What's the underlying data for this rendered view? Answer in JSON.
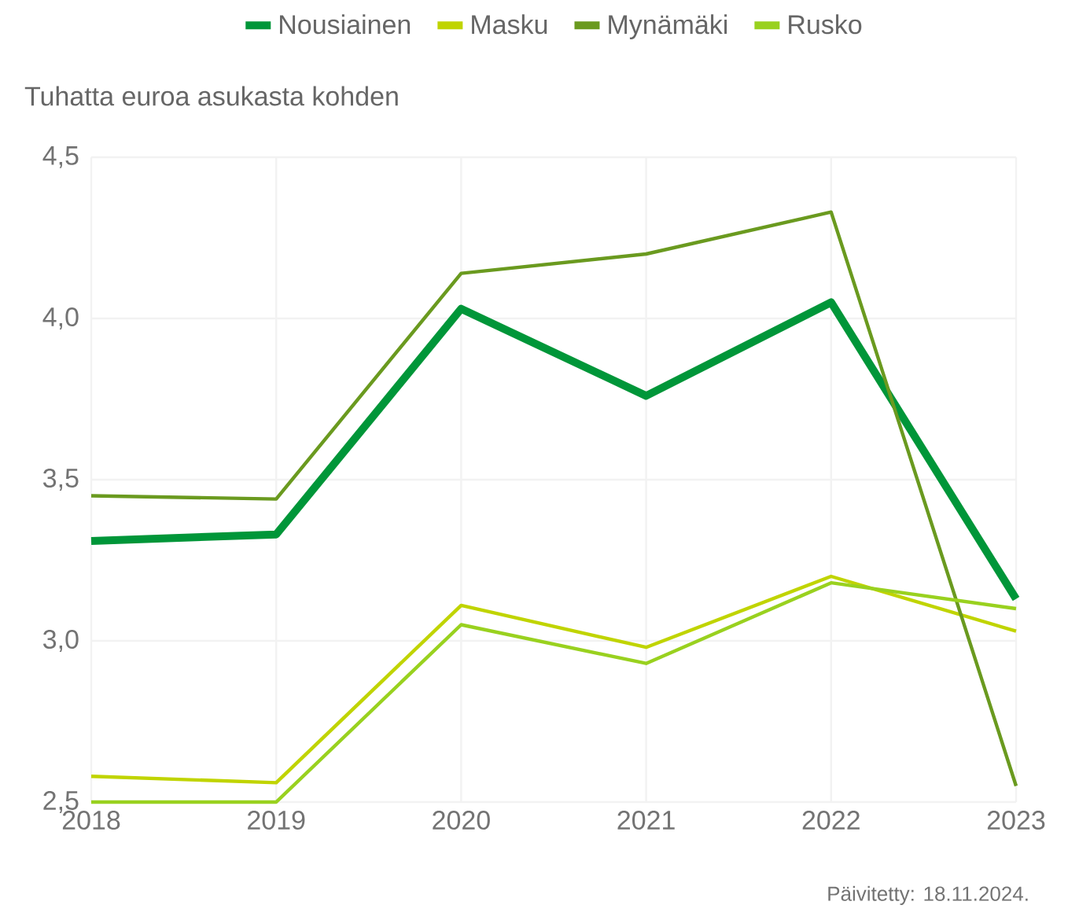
{
  "chart_data": {
    "type": "line",
    "ylabel": "Tuhatta euroa asukasta kohden",
    "x": [
      2018,
      2019,
      2020,
      2021,
      2022,
      2023
    ],
    "xlim": [
      2018,
      2023
    ],
    "xticks": [
      2018,
      2019,
      2020,
      2021,
      2022,
      2023
    ],
    "ylim": [
      2.5,
      4.5
    ],
    "yticks": [
      {
        "value": 2.5,
        "label": "2,5"
      },
      {
        "value": 3.0,
        "label": "3,0"
      },
      {
        "value": 3.5,
        "label": "3,5"
      },
      {
        "value": 4.0,
        "label": "4,0"
      },
      {
        "value": 4.5,
        "label": "4,5"
      }
    ],
    "series": [
      {
        "name": "Nousiainen",
        "color": "#009639",
        "values": [
          3.31,
          3.33,
          4.03,
          3.76,
          4.05,
          3.13
        ]
      },
      {
        "name": "Masku",
        "color": "#c0d400",
        "values": [
          2.58,
          2.56,
          3.11,
          2.98,
          3.2,
          3.03
        ]
      },
      {
        "name": "Mynämäki",
        "color": "#6a9a1f",
        "values": [
          3.45,
          3.44,
          4.14,
          4.2,
          4.33,
          2.55
        ]
      },
      {
        "name": "Rusko",
        "color": "#99d11f",
        "values": [
          2.5,
          2.5,
          3.05,
          2.93,
          3.18,
          3.1
        ]
      }
    ],
    "grid": true,
    "legend": "top",
    "annotations": [
      "Päivitetty: 18.11.2024."
    ]
  }
}
